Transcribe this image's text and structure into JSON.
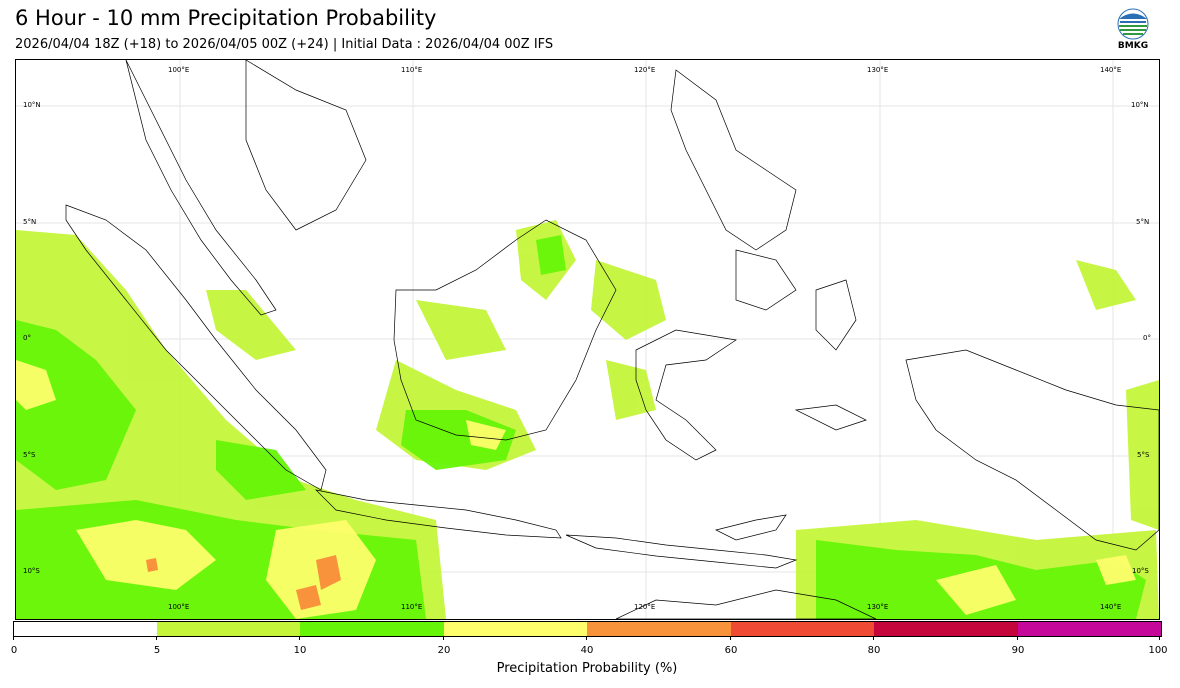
{
  "header": {
    "title": "6 Hour - 10 mm Precipitation Probability",
    "subtitle": "2026/04/04 18Z (+18) to 2026/04/05 00Z (+24) | Initial Data : 2026/04/04 00Z IFS"
  },
  "logo": {
    "label": "BMKG",
    "icon": "bmkg-logo-icon"
  },
  "map": {
    "lon_labels": [
      "100°E",
      "110°E",
      "120°E",
      "130°E",
      "140°E"
    ],
    "lat_labels": [
      "10°N",
      "5°N",
      "0°",
      "5°S",
      "10°S"
    ],
    "extent": {
      "lon": [
        94,
        143
      ],
      "lat": [
        12,
        -12
      ]
    }
  },
  "colorbar": {
    "label": "Precipitation Probability (%)",
    "ticks": [
      "0",
      "5",
      "10",
      "20",
      "40",
      "60",
      "80",
      "90",
      "100"
    ],
    "colors": [
      "#ffffff",
      "#c4f53a",
      "#66f508",
      "#fefe6c",
      "#f8923b",
      "#ef4b34",
      "#c4063c",
      "#c5079a"
    ]
  }
}
